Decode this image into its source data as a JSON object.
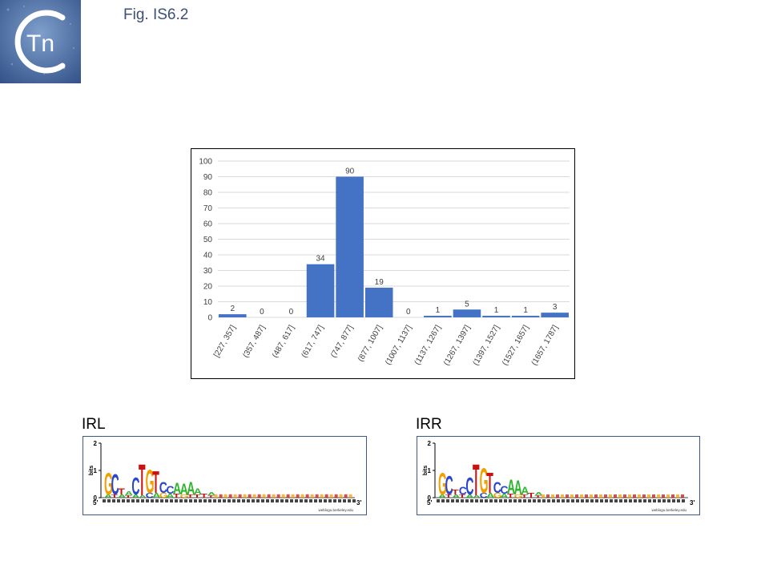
{
  "logo": {
    "letter": "C",
    "text": "Tn",
    "bg_color": "#4a6fa5"
  },
  "figure_title": "Fig. IS6.2",
  "chart_data": {
    "type": "bar",
    "categories": [
      "[227, 357]",
      "(357, 487]",
      "(487, 617]",
      "(617, 747]",
      "(747, 877]",
      "(877, 1007]",
      "(1007, 1137]",
      "(1137, 1267]",
      "(1267, 1397]",
      "(1397, 1527]",
      "(1527, 1657]",
      "(1657, 1787]"
    ],
    "values": [
      2,
      0,
      0,
      34,
      90,
      19,
      0,
      1,
      5,
      1,
      1,
      3
    ],
    "ylim": [
      0,
      100
    ],
    "yticks": [
      0,
      10,
      20,
      30,
      40,
      50,
      60,
      70,
      80,
      90,
      100
    ],
    "grid": true,
    "bar_color": "#4472c4",
    "title": "",
    "xlabel": "",
    "ylabel": ""
  },
  "motifs": [
    {
      "label": "IRL",
      "end5": "5'",
      "end3": "3'",
      "axis": "bits",
      "ymax": "2",
      "ymid": "1",
      "ymin": "0",
      "footer": "weblogo.berkeley.edu"
    },
    {
      "label": "IRR",
      "end5": "5'",
      "end3": "3'",
      "axis": "bits",
      "ymax": "2",
      "ymid": "1",
      "ymin": "0",
      "footer": "weblogo.berkeley.edu"
    }
  ]
}
